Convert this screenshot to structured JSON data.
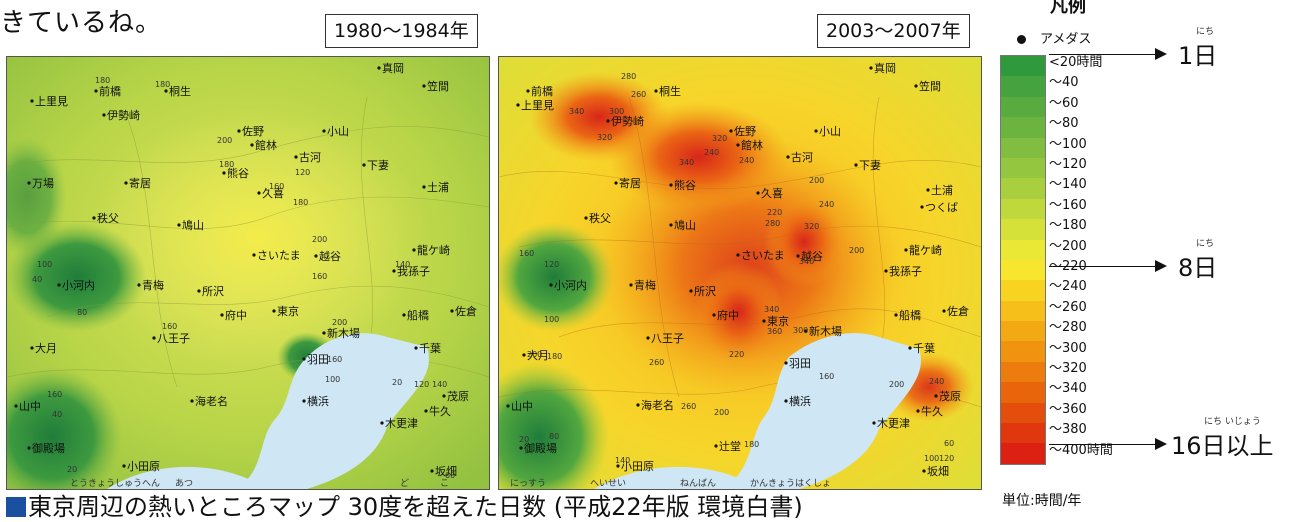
{
  "intro_text": "きているね。",
  "maps": {
    "left": {
      "period": "1980〜1984年",
      "cities": [
        "真岡",
        "笠間",
        "上里見",
        "前橋",
        "桐生",
        "伊勢崎",
        "佐野",
        "小山",
        "館林",
        "古河",
        "熊谷",
        "下妻",
        "万場",
        "寄居",
        "久喜",
        "土浦",
        "秩父",
        "鳩山",
        "龍ケ崎",
        "さいたま",
        "越谷",
        "我孫子",
        "小河内",
        "青梅",
        "所沢",
        "東京",
        "船橋",
        "佐倉",
        "八王子",
        "府中",
        "新木場",
        "千葉",
        "大月",
        "羽田",
        "山中",
        "海老名",
        "横浜",
        "茂原",
        "牛久",
        "木更津",
        "御殿場",
        "小田原",
        "坂畑"
      ],
      "contour_values": [
        "180",
        "180",
        "200",
        "180",
        "120",
        "160",
        "180",
        "200",
        "160",
        "140",
        "100",
        "40",
        "80",
        "160",
        "200",
        "160",
        "100",
        "20",
        "120",
        "140",
        "160",
        "40",
        "20",
        "60"
      ]
    },
    "right": {
      "period": "2003〜2007年",
      "cities": [
        "前橋",
        "真岡",
        "笠間",
        "上里見",
        "桐生",
        "伊勢崎",
        "佐野",
        "小山",
        "館林",
        "古河",
        "熊谷",
        "下妻",
        "寄居",
        "久喜",
        "つくば",
        "土浦",
        "秩父",
        "鳩山",
        "龍ケ崎",
        "さいたま",
        "越谷",
        "我孫子",
        "小河内",
        "青梅",
        "所沢",
        "東京",
        "船橋",
        "佐倉",
        "八王子",
        "府中",
        "新木場",
        "大月",
        "羽田",
        "千葉",
        "山中",
        "海老名",
        "横浜",
        "茂原",
        "牛久",
        "木更津",
        "御殿場",
        "辻堂",
        "小田原",
        "坂畑"
      ],
      "contour_values": [
        "280",
        "260",
        "340",
        "300",
        "320",
        "320",
        "240",
        "340",
        "240",
        "200",
        "220",
        "280",
        "240",
        "200",
        "320",
        "340",
        "160",
        "120",
        "340",
        "360",
        "300",
        "100",
        "200",
        "180",
        "260",
        "220",
        "160",
        "260",
        "200",
        "180",
        "140",
        "20",
        "80",
        "200",
        "240",
        "60",
        "100",
        "120"
      ]
    }
  },
  "legend": {
    "title": "凡例",
    "amedas": "アメダス",
    "steps": [
      "<20時間",
      "〜40",
      "〜60",
      "〜80",
      "〜100",
      "〜120",
      "〜140",
      "〜160",
      "〜180",
      "〜200",
      "〜220",
      "〜240",
      "〜260",
      "〜280",
      "〜300",
      "〜320",
      "〜340",
      "〜360",
      "〜380",
      "〜400時間"
    ],
    "colors": [
      "#2f9a3b",
      "#44a33e",
      "#58ab3f",
      "#6cb440",
      "#80bd40",
      "#95c63f",
      "#a9cf3e",
      "#bfd83c",
      "#d5e039",
      "#eae835",
      "#f7e62d",
      "#f8d421",
      "#f6bf19",
      "#f3a913",
      "#f0930f",
      "#ec7c0d",
      "#e8650c",
      "#e44e0d",
      "#e0370f",
      "#dc2012"
    ],
    "days": [
      {
        "label": "1日",
        "ruby": "にち"
      },
      {
        "label": "8日",
        "ruby": "にち"
      },
      {
        "label": "16日以上",
        "ruby": "にち いじょう"
      }
    ],
    "unit": "単位:時間/年"
  },
  "caption": {
    "text": "東京周辺の熱いところマップ 30度を超えた日数 (平成22年版 環境白書)",
    "ruby": [
      "とうきょうしゅうへん",
      "あつ",
      "ど",
      "こ",
      "にっすう",
      "へいせい",
      "ねんばん",
      "かんきょうはくしょ"
    ]
  }
}
